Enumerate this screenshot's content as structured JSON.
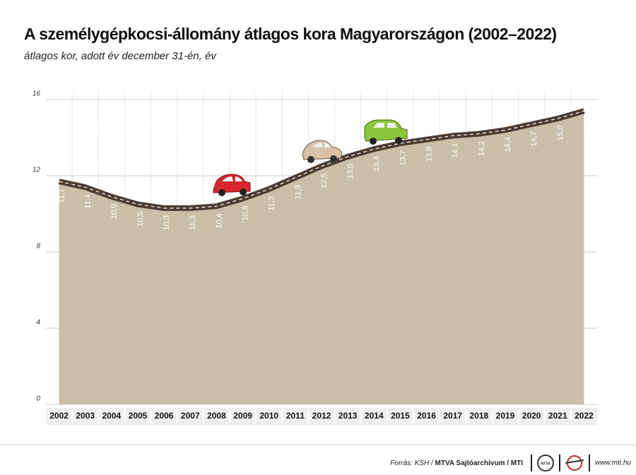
{
  "chart_data": {
    "type": "area",
    "title": "A személygépkocsi-állomány átlagos kora Magyarországon (2002–2022)",
    "subtitle": "átlagos kor, adott év december 31-én, év",
    "categories": [
      "2002",
      "2003",
      "2004",
      "2005",
      "2006",
      "2007",
      "2008",
      "2009",
      "2010",
      "2011",
      "2012",
      "2013",
      "2014",
      "2015",
      "2016",
      "2017",
      "2018",
      "2019",
      "2020",
      "2021",
      "2022"
    ],
    "values": [
      11.7,
      11.4,
      10.9,
      10.5,
      10.3,
      10.3,
      10.4,
      10.8,
      11.3,
      11.9,
      12.5,
      13.0,
      13.4,
      13.7,
      13.9,
      14.1,
      14.2,
      14.4,
      14.7,
      15.0,
      15.4
    ],
    "value_labels": [
      "11,7",
      "11,4",
      "10,9",
      "10,5",
      "10,3",
      "10,3",
      "10,4",
      "10,8",
      "11,3",
      "11,9",
      "12,5",
      "13,0",
      "13,4",
      "13,7",
      "13,9",
      "14,1",
      "14,2",
      "14,4",
      "14,7",
      "15,0",
      "15,4"
    ],
    "color": "#c9bea8",
    "line_color": "#4b3b31",
    "ylim": [
      0,
      16
    ],
    "yticks": [
      0,
      4,
      8,
      12,
      16
    ],
    "grid": true,
    "source": "Forrás: KSH /",
    "source_bold": "MTVA Sajtóarchívum / MTI",
    "website": "www.mti.hu"
  }
}
